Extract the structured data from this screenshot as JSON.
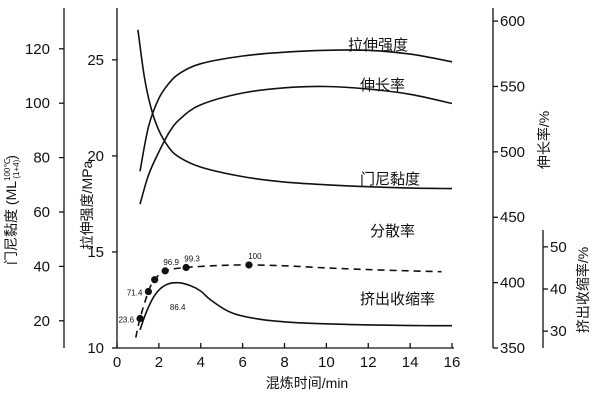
{
  "chart_data": {
    "type": "line",
    "x_label": "混炼时间/min",
    "x_ticks": [
      0,
      2,
      4,
      6,
      8,
      10,
      12,
      14,
      16
    ],
    "x_range": [
      0,
      16
    ],
    "axes": {
      "left_mooney": {
        "label_main": "门尼黏度 (ML",
        "label_sub": "(1+4)",
        "label_sup": "100℃",
        "label_end": ")",
        "range": [
          10,
          135
        ],
        "ticks": [
          20,
          40,
          60,
          80,
          100,
          120
        ]
      },
      "left_tensile": {
        "label": "拉伸强度/MPa",
        "range": [
          10,
          27.7
        ],
        "ticks": [
          10,
          15,
          20,
          25
        ]
      },
      "right_elongation": {
        "label": "伸长率/%",
        "range": [
          350,
          610
        ],
        "ticks": [
          350,
          400,
          450,
          500,
          550,
          600
        ]
      },
      "right_shrinkage": {
        "label": "挤出收缩率/%",
        "range": [
          26,
          54
        ],
        "ticks": [
          30,
          40,
          50
        ]
      }
    },
    "series": [
      {
        "name": "拉伸强度",
        "axis": "left_tensile",
        "style": "solid",
        "points": [
          [
            1.1,
            19.2
          ],
          [
            1.5,
            21.5
          ],
          [
            2,
            23
          ],
          [
            2.5,
            23.8
          ],
          [
            3,
            24.3
          ],
          [
            4,
            24.8
          ],
          [
            6,
            25.2
          ],
          [
            8,
            25.4
          ],
          [
            10,
            25.5
          ],
          [
            12,
            25.5
          ],
          [
            14,
            25.3
          ],
          [
            16,
            24.9
          ]
        ]
      },
      {
        "name": "伸长率",
        "axis": "right_elongation",
        "style": "solid",
        "points": [
          [
            1.1,
            460
          ],
          [
            1.5,
            482
          ],
          [
            2,
            500
          ],
          [
            2.5,
            515
          ],
          [
            3,
            525
          ],
          [
            4,
            536
          ],
          [
            6,
            545
          ],
          [
            8,
            549
          ],
          [
            10,
            550
          ],
          [
            12,
            548
          ],
          [
            14,
            544
          ],
          [
            16,
            537
          ]
        ]
      },
      {
        "name": "门尼黏度",
        "axis": "left_mooney",
        "style": "solid",
        "points": [
          [
            1.0,
            127
          ],
          [
            1.3,
            110
          ],
          [
            1.6,
            99
          ],
          [
            2,
            90
          ],
          [
            2.5,
            83.5
          ],
          [
            3,
            80
          ],
          [
            4,
            76.5
          ],
          [
            6,
            73
          ],
          [
            8,
            71
          ],
          [
            10,
            70
          ],
          [
            12,
            69.3
          ],
          [
            14,
            68.8
          ],
          [
            16,
            68.6
          ]
        ]
      },
      {
        "name": "分散率",
        "axis": "right_shrinkage",
        "style": "dashed",
        "points": [
          [
            0.9,
            28.5
          ],
          [
            1.1,
            33
          ],
          [
            1.5,
            39.4
          ],
          [
            1.8,
            42.2
          ],
          [
            2.3,
            44.3
          ],
          [
            3.3,
            45.1
          ],
          [
            5,
            45.6
          ],
          [
            6.3,
            45.7
          ],
          [
            8,
            45.5
          ],
          [
            10,
            45
          ],
          [
            12,
            44.6
          ],
          [
            14,
            44.3
          ],
          [
            15.5,
            44.1
          ]
        ]
      },
      {
        "name": "挤出收缩率",
        "axis": "right_shrinkage",
        "style": "solid",
        "points": [
          [
            1.1,
            30.3
          ],
          [
            1.4,
            34.5
          ],
          [
            1.8,
            38.5
          ],
          [
            2.3,
            40.9
          ],
          [
            2.9,
            41.5
          ],
          [
            3.5,
            40.8
          ],
          [
            4,
            39.5
          ],
          [
            4.5,
            37.3
          ],
          [
            5.5,
            34.3
          ],
          [
            7,
            32.7
          ],
          [
            9,
            31.9
          ],
          [
            11,
            31.6
          ],
          [
            13,
            31.4
          ],
          [
            15,
            31.3
          ],
          [
            16,
            31.3
          ]
        ]
      }
    ],
    "markers": [
      {
        "x": 1.1,
        "y": 33.0,
        "label": "23.6",
        "label_side": "left"
      },
      {
        "x": 1.5,
        "y": 39.4,
        "label": "71.4",
        "label_side": "left"
      },
      {
        "x": 1.8,
        "y": 42.2,
        "label": "",
        "label_side": "left"
      },
      {
        "x": 2.3,
        "y": 44.3,
        "label": "96.9",
        "label_side": "above"
      },
      {
        "x": 3.3,
        "y": 45.1,
        "label": "99.3",
        "label_side": "above"
      },
      {
        "x": 6.3,
        "y": 45.7,
        "label": "100",
        "label_side": "above"
      }
    ],
    "annotations": [
      {
        "text": "86.4",
        "x": 2.9,
        "y": 41.7
      }
    ],
    "curve_labels": [
      {
        "text": "拉伸强度",
        "series": "拉伸强度"
      },
      {
        "text": "伸长率",
        "series": "伸长率"
      },
      {
        "text": "门尼黏度",
        "series": "门尼黏度"
      },
      {
        "text": "分散率",
        "series": "分散率"
      },
      {
        "text": "挤出收缩率",
        "series": "挤出收缩率"
      }
    ]
  }
}
